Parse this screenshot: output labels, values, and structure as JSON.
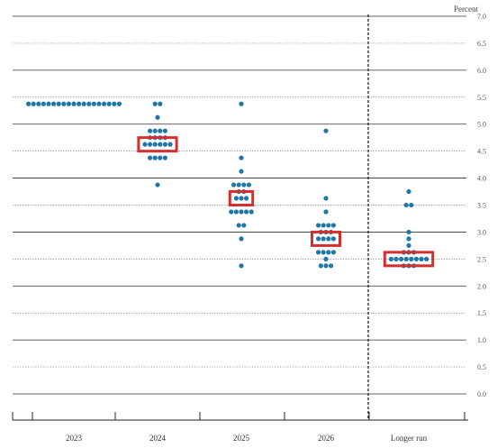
{
  "chart_data": {
    "type": "scatter",
    "subtype": "dot-plot",
    "unit": "Percent",
    "ylim": [
      0,
      7
    ],
    "y_ticks": [
      "0.0",
      "0.5",
      "1.0",
      "1.5",
      "2.0",
      "2.5",
      "3.0",
      "3.5",
      "4.0",
      "4.5",
      "5.0",
      "5.5",
      "6.0",
      "6.5",
      "7.0"
    ],
    "grid": "solid lines at whole numbers, dotted lines at half steps",
    "categories": [
      "2023",
      "2024",
      "2025",
      "2026",
      "Longer run"
    ],
    "separator_after": "2026",
    "dot_color": "#1f77a8",
    "highlight_color": "#d32f2f",
    "series": [
      {
        "category": "2023",
        "rows": [
          {
            "value": 5.375,
            "count": 19
          }
        ]
      },
      {
        "category": "2024",
        "rows": [
          {
            "value": 5.375,
            "count": 2
          },
          {
            "value": 5.125,
            "count": 1
          },
          {
            "value": 4.875,
            "count": 4
          },
          {
            "value": 4.75,
            "count": 4
          },
          {
            "value": 4.625,
            "count": 6
          },
          {
            "value": 4.375,
            "count": 4
          },
          {
            "value": 3.875,
            "count": 1
          }
        ]
      },
      {
        "category": "2025",
        "rows": [
          {
            "value": 5.375,
            "count": 1
          },
          {
            "value": 4.375,
            "count": 1
          },
          {
            "value": 4.125,
            "count": 1
          },
          {
            "value": 3.875,
            "count": 4
          },
          {
            "value": 3.75,
            "count": 2
          },
          {
            "value": 3.625,
            "count": 3
          },
          {
            "value": 3.375,
            "count": 5
          },
          {
            "value": 3.125,
            "count": 2
          },
          {
            "value": 2.875,
            "count": 1
          },
          {
            "value": 2.375,
            "count": 1
          }
        ]
      },
      {
        "category": "2026",
        "rows": [
          {
            "value": 4.875,
            "count": 1
          },
          {
            "value": 3.625,
            "count": 1
          },
          {
            "value": 3.375,
            "count": 1
          },
          {
            "value": 3.125,
            "count": 4
          },
          {
            "value": 3.0,
            "count": 3
          },
          {
            "value": 2.875,
            "count": 4
          },
          {
            "value": 2.625,
            "count": 4
          },
          {
            "value": 2.5,
            "count": 1
          },
          {
            "value": 2.375,
            "count": 3
          }
        ]
      },
      {
        "category": "Longer run",
        "rows": [
          {
            "value": 3.75,
            "count": 1
          },
          {
            "value": 3.5,
            "count": 2
          },
          {
            "value": 3.0,
            "count": 1
          },
          {
            "value": 2.875,
            "count": 1
          },
          {
            "value": 2.75,
            "count": 1
          },
          {
            "value": 2.625,
            "count": 3
          },
          {
            "value": 2.5,
            "count": 8
          },
          {
            "value": 2.375,
            "count": 3
          }
        ]
      }
    ],
    "medians": [
      {
        "category": "2024",
        "value": 4.625
      },
      {
        "category": "2025",
        "value": 3.625
      },
      {
        "category": "2026",
        "value": 2.875
      },
      {
        "category": "Longer run",
        "value": 2.5
      }
    ]
  }
}
